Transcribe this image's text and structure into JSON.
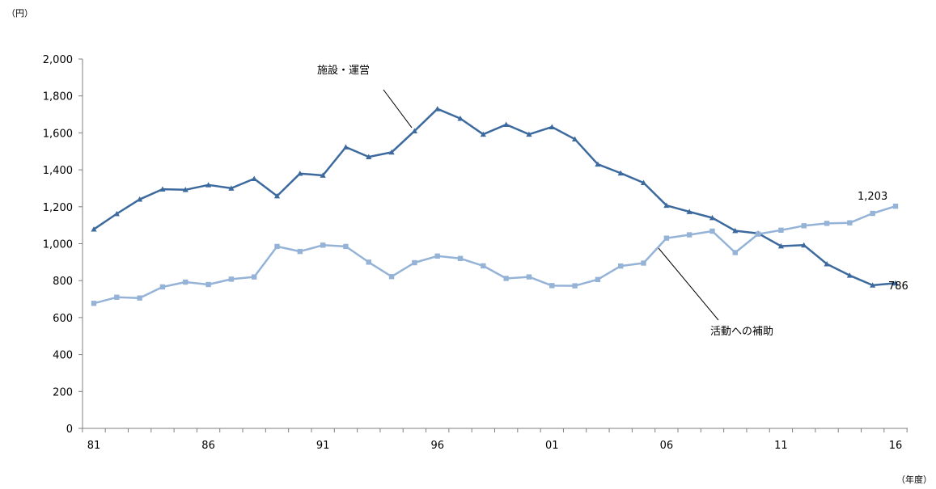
{
  "chart_data": {
    "type": "line",
    "y_unit_label": "（円）",
    "x_unit_label": "（年度）",
    "ylim": [
      0,
      2000
    ],
    "yticks": [
      "0",
      "200",
      "400",
      "600",
      "800",
      "1,000",
      "1,200",
      "1,400",
      "1,600",
      "1,800",
      "2,000"
    ],
    "ytick_values": [
      0,
      200,
      400,
      600,
      800,
      1000,
      1200,
      1400,
      1600,
      1800,
      2000
    ],
    "xticks": [
      "81",
      "86",
      "91",
      "96",
      "01",
      "06",
      "11",
      "16"
    ],
    "xtick_years": [
      1981,
      1986,
      1991,
      1996,
      2001,
      2006,
      2011,
      2016
    ],
    "x": [
      1981,
      1982,
      1983,
      1984,
      1985,
      1986,
      1987,
      1988,
      1989,
      1990,
      1991,
      1992,
      1993,
      1994,
      1995,
      1996,
      1997,
      1998,
      1999,
      2000,
      2001,
      2002,
      2003,
      2004,
      2005,
      2006,
      2007,
      2008,
      2009,
      2010,
      2011,
      2012,
      2013,
      2014,
      2015,
      2016
    ],
    "grid": false,
    "series": [
      {
        "name": "施設・運営",
        "color": "#3d6a9e",
        "marker": "triangle",
        "values": [
          1078,
          1162,
          1240,
          1295,
          1292,
          1318,
          1300,
          1352,
          1258,
          1380,
          1370,
          1523,
          1470,
          1495,
          1610,
          1730,
          1678,
          1592,
          1645,
          1592,
          1632,
          1566,
          1430,
          1382,
          1330,
          1207,
          1173,
          1140,
          1070,
          1056,
          987,
          992,
          890,
          828,
          775,
          786
        ]
      },
      {
        "name": "活動への補助",
        "color": "#95b3d7",
        "marker": "square",
        "values": [
          677,
          710,
          706,
          766,
          792,
          779,
          808,
          820,
          985,
          958,
          992,
          985,
          900,
          822,
          897,
          933,
          920,
          880,
          812,
          820,
          773,
          772,
          806,
          879,
          895,
          1030,
          1048,
          1068,
          952,
          1052,
          1073,
          1097,
          1110,
          1113,
          1164,
          1203
        ]
      }
    ],
    "end_labels": [
      "786",
      "1,203"
    ]
  }
}
